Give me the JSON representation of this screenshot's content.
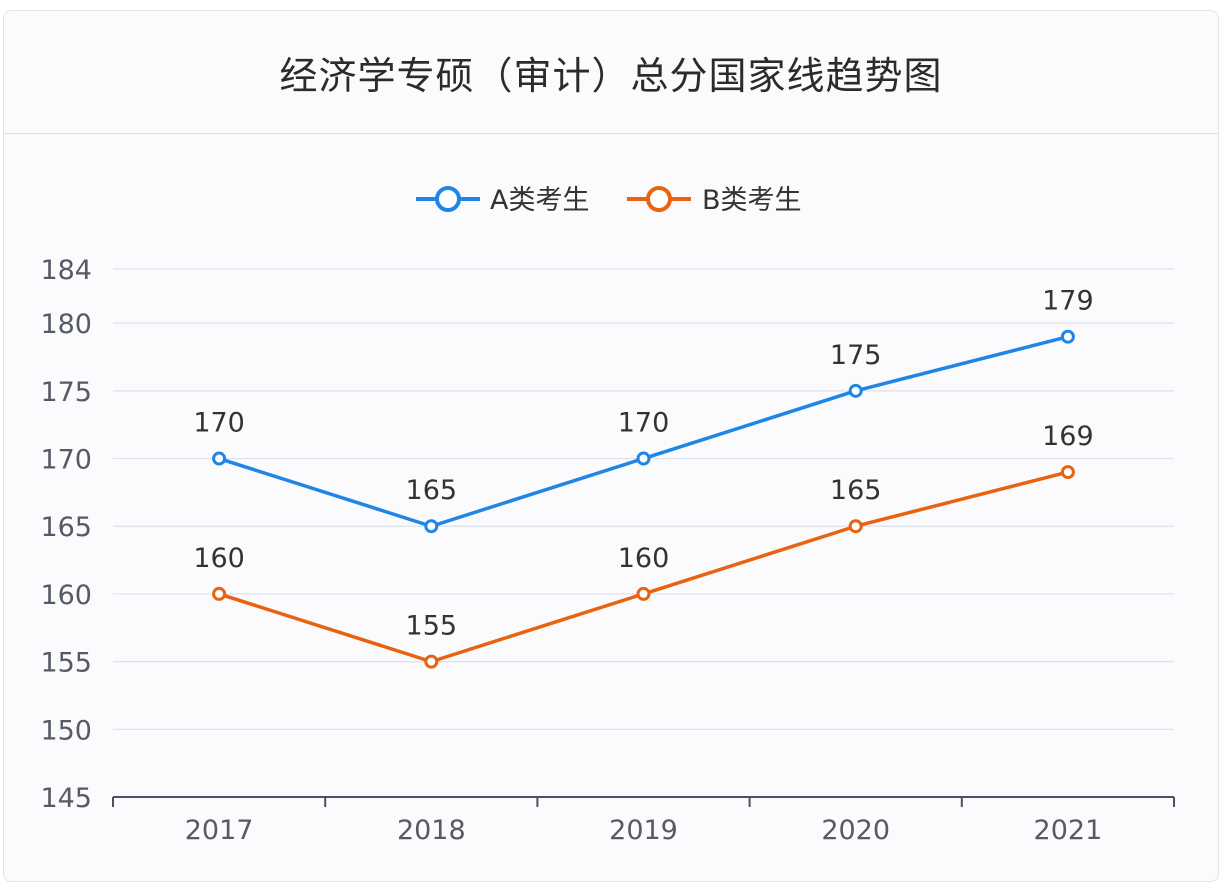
{
  "colors": {
    "series_a": "#1f86e6",
    "series_b": "#e9620f",
    "grid": "#dde1ea",
    "axis": "#4a5068",
    "tick_text": "#555a66"
  },
  "chart_data": {
    "type": "line",
    "title": "经济学专硕（审计）总分国家线趋势图",
    "xlabel": "",
    "ylabel": "",
    "categories": [
      "2017",
      "2018",
      "2019",
      "2020",
      "2021"
    ],
    "y_ticks": [
      145,
      150,
      155,
      160,
      165,
      170,
      175,
      180,
      184
    ],
    "ylim": [
      145,
      184
    ],
    "grid": true,
    "legend_position": "top-center",
    "series": [
      {
        "name": "A类考生",
        "values": [
          170,
          165,
          170,
          175,
          179
        ]
      },
      {
        "name": "B类考生",
        "values": [
          160,
          155,
          160,
          165,
          169
        ]
      }
    ]
  }
}
